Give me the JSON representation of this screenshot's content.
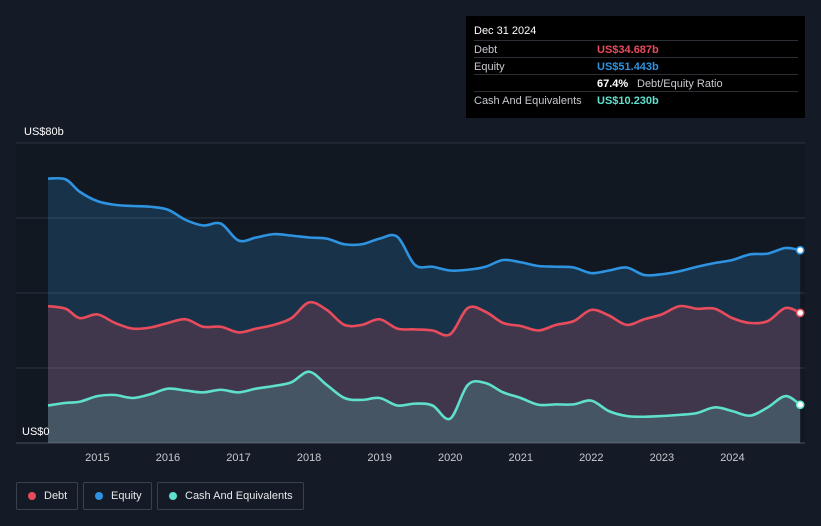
{
  "tooltip": {
    "date": "Dec 31 2024",
    "rows": {
      "debt": {
        "label": "Debt",
        "value": "US$34.687b"
      },
      "equity": {
        "label": "Equity",
        "value": "US$51.443b"
      },
      "ratio": {
        "value": "67.4%",
        "label": "Debt/Equity Ratio"
      },
      "cash": {
        "label": "Cash And Equivalents",
        "value": "US$10.230b"
      }
    }
  },
  "legend": [
    {
      "label": "Debt",
      "color": "#e84c5c"
    },
    {
      "label": "Equity",
      "color": "#2e93e0"
    },
    {
      "label": "Cash And Equivalents",
      "color": "#5fe0cc"
    }
  ],
  "chart_data": {
    "type": "area",
    "y_top_label": "US$80b",
    "y_bottom_label": "US$0",
    "ylim": [
      0,
      80
    ],
    "xlim": [
      2014.3,
      2025.0
    ],
    "x_ticks": [
      "2015",
      "2016",
      "2017",
      "2018",
      "2019",
      "2020",
      "2021",
      "2022",
      "2023",
      "2024"
    ],
    "x_tick_values": [
      2015,
      2016,
      2017,
      2018,
      2019,
      2020,
      2021,
      2022,
      2023,
      2024
    ],
    "grid": true,
    "legend_position": "bottom-left",
    "colors": {
      "debt": "#e84c5c",
      "equity": "#2e93e0",
      "cash": "#5fe0cc"
    },
    "series": [
      {
        "name": "Equity",
        "x": [
          2014.3,
          2014.55,
          2014.75,
          2015.0,
          2015.25,
          2015.5,
          2015.75,
          2016.0,
          2016.25,
          2016.5,
          2016.75,
          2017.0,
          2017.25,
          2017.5,
          2017.75,
          2018.0,
          2018.25,
          2018.5,
          2018.75,
          2019.0,
          2019.25,
          2019.5,
          2019.75,
          2020.0,
          2020.25,
          2020.5,
          2020.75,
          2021.0,
          2021.25,
          2021.5,
          2021.75,
          2022.0,
          2022.25,
          2022.5,
          2022.75,
          2023.0,
          2023.25,
          2023.5,
          2023.75,
          2024.0,
          2024.25,
          2024.5,
          2024.75,
          2024.96
        ],
        "values": [
          70.5,
          70.3,
          67.0,
          64.5,
          63.5,
          63.2,
          63.0,
          62.2,
          59.5,
          58.0,
          58.5,
          54.0,
          54.8,
          55.7,
          55.3,
          54.8,
          54.5,
          53.0,
          53.0,
          54.5,
          55.0,
          47.5,
          47.0,
          46.0,
          46.2,
          47.0,
          48.8,
          48.2,
          47.2,
          47.0,
          46.8,
          45.3,
          46.0,
          46.8,
          44.8,
          45.0,
          45.8,
          47.0,
          48.0,
          48.8,
          50.3,
          50.5,
          52.0,
          51.4
        ]
      },
      {
        "name": "Debt",
        "x": [
          2014.3,
          2014.55,
          2014.75,
          2015.0,
          2015.25,
          2015.5,
          2015.75,
          2016.0,
          2016.25,
          2016.5,
          2016.75,
          2017.0,
          2017.25,
          2017.5,
          2017.75,
          2018.0,
          2018.25,
          2018.5,
          2018.75,
          2019.0,
          2019.25,
          2019.5,
          2019.75,
          2020.0,
          2020.25,
          2020.5,
          2020.75,
          2021.0,
          2021.25,
          2021.5,
          2021.75,
          2022.0,
          2022.25,
          2022.5,
          2022.75,
          2023.0,
          2023.25,
          2023.5,
          2023.75,
          2024.0,
          2024.25,
          2024.5,
          2024.75,
          2024.96
        ],
        "values": [
          36.5,
          35.8,
          33.3,
          34.3,
          32.0,
          30.5,
          30.8,
          32.0,
          33.0,
          31.0,
          31.0,
          29.5,
          30.5,
          31.5,
          33.3,
          37.5,
          35.5,
          31.5,
          31.5,
          33.0,
          30.5,
          30.3,
          30.0,
          29.0,
          36.0,
          35.0,
          32.0,
          31.2,
          30.0,
          31.5,
          32.5,
          35.5,
          34.0,
          31.5,
          33.0,
          34.3,
          36.5,
          35.8,
          35.8,
          33.3,
          32.0,
          32.5,
          36.0,
          34.7
        ]
      },
      {
        "name": "Cash And Equivalents",
        "x": [
          2014.3,
          2014.55,
          2014.75,
          2015.0,
          2015.25,
          2015.5,
          2015.75,
          2016.0,
          2016.25,
          2016.5,
          2016.75,
          2017.0,
          2017.25,
          2017.5,
          2017.75,
          2018.0,
          2018.25,
          2018.5,
          2018.75,
          2019.0,
          2019.25,
          2019.5,
          2019.75,
          2020.0,
          2020.25,
          2020.5,
          2020.75,
          2021.0,
          2021.25,
          2021.5,
          2021.75,
          2022.0,
          2022.25,
          2022.5,
          2022.75,
          2023.0,
          2023.25,
          2023.5,
          2023.75,
          2024.0,
          2024.25,
          2024.5,
          2024.75,
          2024.96
        ],
        "values": [
          10.0,
          10.7,
          11.0,
          12.5,
          12.8,
          12.0,
          13.0,
          14.5,
          14.0,
          13.5,
          14.2,
          13.5,
          14.5,
          15.2,
          16.2,
          19.0,
          15.5,
          12.0,
          11.5,
          12.0,
          10.0,
          10.5,
          10.0,
          6.5,
          15.5,
          16.0,
          13.5,
          12.0,
          10.2,
          10.3,
          10.3,
          11.3,
          8.5,
          7.2,
          7.0,
          7.2,
          7.5,
          8.0,
          9.5,
          8.5,
          7.3,
          9.5,
          12.5,
          10.2
        ]
      }
    ]
  }
}
